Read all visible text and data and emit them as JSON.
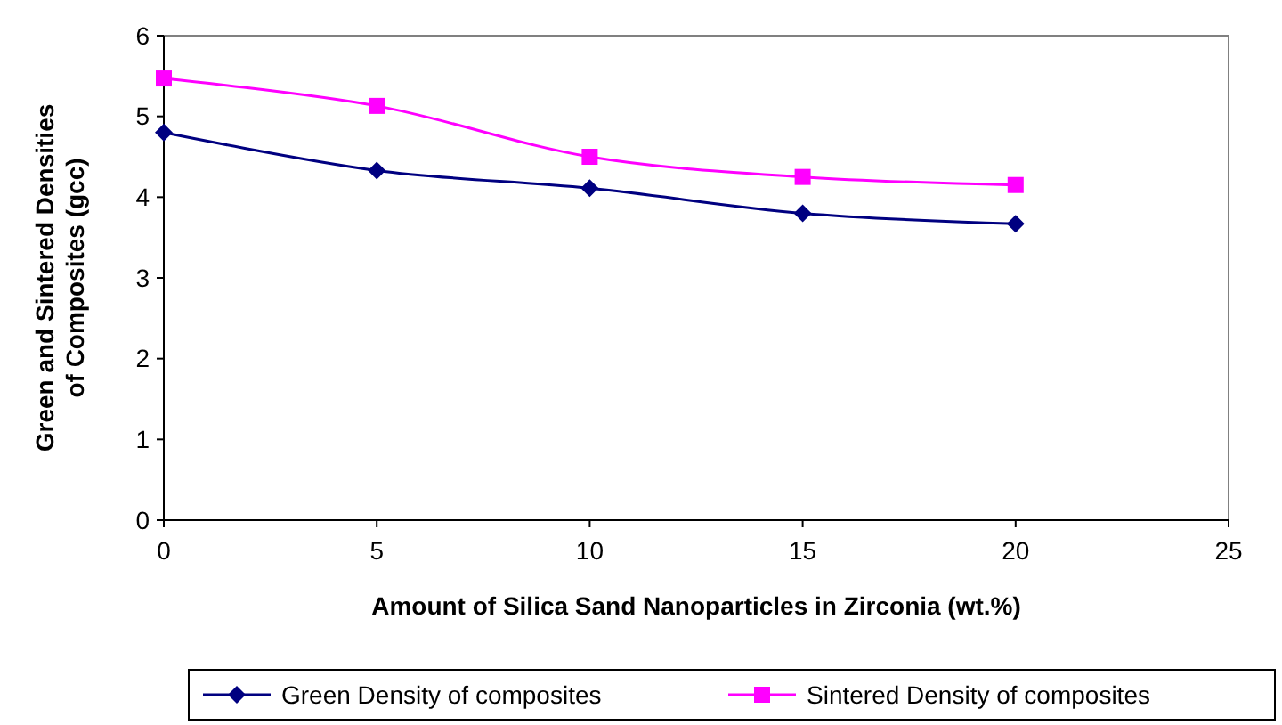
{
  "chart_data": {
    "type": "line",
    "xlabel": "Amount of Silica Sand Nanoparticles in Zirconia (wt.%)",
    "ylabel": "Green and Sintered Densities of Composites (gcc)",
    "x": [
      0,
      5,
      10,
      15,
      20
    ],
    "series": [
      {
        "name": "Green Density of composites",
        "color": "#000080",
        "marker": "diamond",
        "values": [
          4.8,
          4.33,
          4.11,
          3.8,
          3.67
        ]
      },
      {
        "name": "Sintered Density of composites",
        "color": "#ff00ff",
        "marker": "square",
        "values": [
          5.47,
          5.13,
          4.5,
          4.25,
          4.15
        ]
      }
    ],
    "xlim": [
      0,
      25
    ],
    "xticks": [
      0,
      5,
      10,
      15,
      20,
      25
    ],
    "ylim": [
      0,
      6
    ],
    "yticks": [
      0,
      1,
      2,
      3,
      4,
      5,
      6
    ],
    "grid": false,
    "legend": "bottom",
    "line_style": "solid"
  }
}
